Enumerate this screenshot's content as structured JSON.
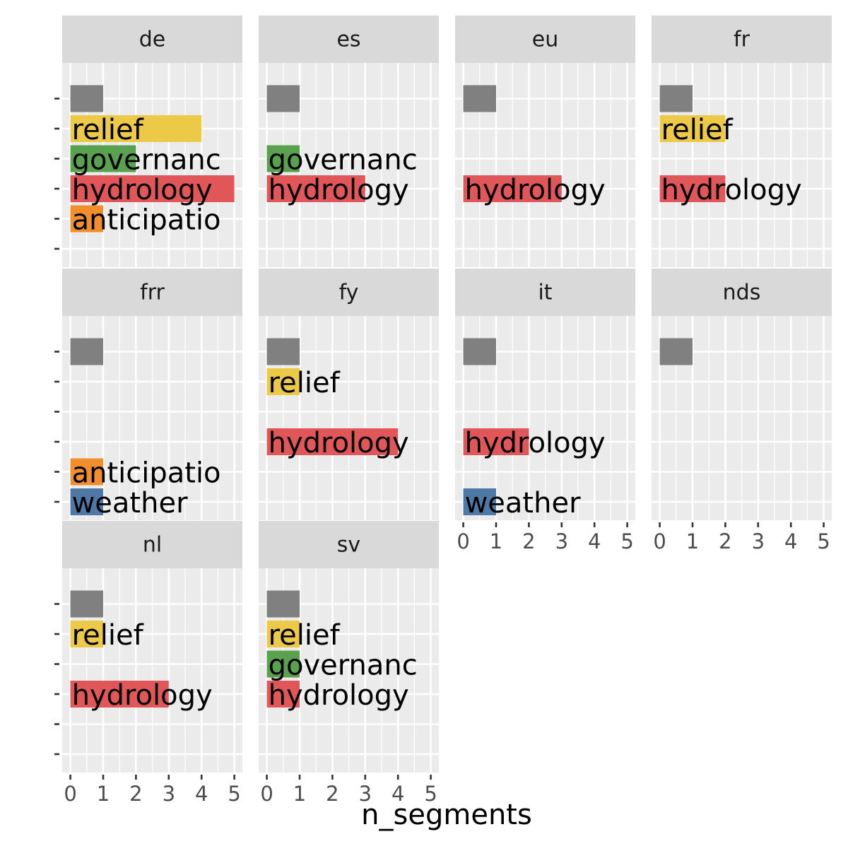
{
  "chart_data": {
    "type": "bar",
    "orientation": "horizontal",
    "layout": "facet_wrap",
    "xlabel": "n_segments",
    "ylabel": "",
    "xlim": [
      0,
      5
    ],
    "x_ticks": [
      "0",
      "1",
      "2",
      "3",
      "4",
      "5"
    ],
    "grid": true,
    "legend": "none",
    "category_slots": [
      "",
      "relief",
      "governanc",
      "hydrology",
      "anticipatio",
      "weather"
    ],
    "colors": {
      "": "#808080",
      "relief": "#EDC948",
      "governanc": "#59A14F",
      "hydrology": "#E15759",
      "anticipatio": "#F28E2B",
      "weather": "#4E79A7"
    },
    "panel_background": "#EBEBEB",
    "strip_background": "#D9D9D9",
    "facets": [
      {
        "name": "de",
        "bars": [
          {
            "slot": 0,
            "label": "",
            "value": 1
          },
          {
            "slot": 1,
            "label": "relief",
            "value": 4
          },
          {
            "slot": 2,
            "label": "governanc",
            "value": 2
          },
          {
            "slot": 3,
            "label": "hydrology",
            "value": 5
          },
          {
            "slot": 4,
            "label": "anticipatio",
            "value": 1
          }
        ]
      },
      {
        "name": "es",
        "bars": [
          {
            "slot": 0,
            "label": "",
            "value": 1
          },
          {
            "slot": 2,
            "label": "governanc",
            "value": 1
          },
          {
            "slot": 3,
            "label": "hydrology",
            "value": 3
          }
        ]
      },
      {
        "name": "eu",
        "bars": [
          {
            "slot": 0,
            "label": "",
            "value": 1
          },
          {
            "slot": 3,
            "label": "hydrology",
            "value": 3
          }
        ]
      },
      {
        "name": "fr",
        "bars": [
          {
            "slot": 0,
            "label": "",
            "value": 1
          },
          {
            "slot": 1,
            "label": "relief",
            "value": 2
          },
          {
            "slot": 3,
            "label": "hydrology",
            "value": 2
          }
        ]
      },
      {
        "name": "frr",
        "bars": [
          {
            "slot": 0,
            "label": "",
            "value": 1
          },
          {
            "slot": 4,
            "label": "anticipatio",
            "value": 1
          },
          {
            "slot": 5,
            "label": "weather",
            "value": 1
          }
        ]
      },
      {
        "name": "fy",
        "bars": [
          {
            "slot": 0,
            "label": "",
            "value": 1
          },
          {
            "slot": 1,
            "label": "relief",
            "value": 1
          },
          {
            "slot": 3,
            "label": "hydrology",
            "value": 4
          }
        ]
      },
      {
        "name": "it",
        "bars": [
          {
            "slot": 0,
            "label": "",
            "value": 1
          },
          {
            "slot": 3,
            "label": "hydrology",
            "value": 2
          },
          {
            "slot": 5,
            "label": "weather",
            "value": 1
          }
        ]
      },
      {
        "name": "nds",
        "bars": [
          {
            "slot": 0,
            "label": "",
            "value": 1
          }
        ]
      },
      {
        "name": "nl",
        "bars": [
          {
            "slot": 0,
            "label": "",
            "value": 1
          },
          {
            "slot": 1,
            "label": "relief",
            "value": 1
          },
          {
            "slot": 3,
            "label": "hydrology",
            "value": 3
          }
        ]
      },
      {
        "name": "sv",
        "bars": [
          {
            "slot": 0,
            "label": "",
            "value": 1
          },
          {
            "slot": 1,
            "label": "relief",
            "value": 1
          },
          {
            "slot": 2,
            "label": "governanc",
            "value": 1
          },
          {
            "slot": 3,
            "label": "hydrology",
            "value": 1
          }
        ]
      }
    ]
  }
}
